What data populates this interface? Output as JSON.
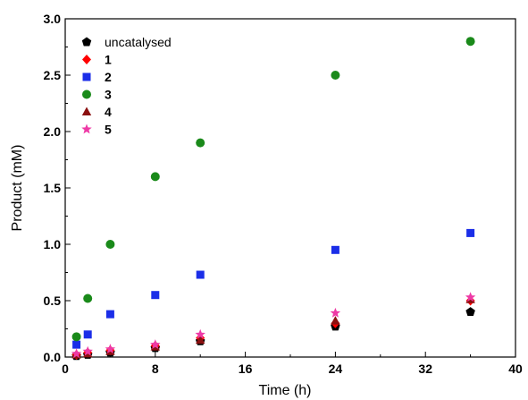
{
  "chart_data": {
    "type": "scatter",
    "xlabel": "Time (h)",
    "ylabel": "Product (mM)",
    "xlim": [
      0,
      40
    ],
    "ylim": [
      0,
      3.0
    ],
    "xticks": [
      "0",
      "8",
      "16",
      "24",
      "32",
      "40"
    ],
    "yticks": [
      "0.0",
      "0.5",
      "1.0",
      "1.5",
      "2.0",
      "2.5",
      "3.0"
    ],
    "grid": false,
    "legend_position": "top-left",
    "series": [
      {
        "name": "uncatalysed",
        "marker": "pentagon",
        "color": "#000000",
        "points": [
          [
            1,
            0.01
          ],
          [
            2,
            0.02
          ],
          [
            4,
            0.04
          ],
          [
            8,
            0.08
          ],
          [
            12,
            0.14
          ],
          [
            24,
            0.27
          ],
          [
            36,
            0.4
          ]
        ]
      },
      {
        "name": "1",
        "marker": "diamond",
        "color": "#ff0000",
        "points": [
          [
            1,
            0.02
          ],
          [
            2,
            0.04
          ],
          [
            4,
            0.06
          ],
          [
            8,
            0.1
          ],
          [
            12,
            0.17
          ],
          [
            24,
            0.3
          ],
          [
            36,
            0.5
          ]
        ]
      },
      {
        "name": "2",
        "marker": "square",
        "color": "#1b2ee8",
        "points": [
          [
            1,
            0.11
          ],
          [
            2,
            0.2
          ],
          [
            4,
            0.38
          ],
          [
            8,
            0.55
          ],
          [
            12,
            0.73
          ],
          [
            24,
            0.95
          ],
          [
            36,
            1.1
          ]
        ]
      },
      {
        "name": "3",
        "marker": "circle",
        "color": "#1a8a1a",
        "points": [
          [
            1,
            0.18
          ],
          [
            2,
            0.52
          ],
          [
            4,
            1.0
          ],
          [
            8,
            1.6
          ],
          [
            12,
            1.9
          ],
          [
            24,
            2.5
          ],
          [
            36,
            2.8
          ]
        ]
      },
      {
        "name": "4",
        "marker": "triangle",
        "color": "#8b1010",
        "points": [
          [
            1,
            0.02
          ],
          [
            2,
            0.03
          ],
          [
            4,
            0.05
          ],
          [
            8,
            0.09
          ],
          [
            12,
            0.15
          ],
          [
            24,
            0.32
          ],
          [
            36,
            0.51
          ]
        ]
      },
      {
        "name": "5",
        "marker": "star",
        "color": "#ee3aa6",
        "points": [
          [
            1,
            0.03
          ],
          [
            2,
            0.05
          ],
          [
            4,
            0.07
          ],
          [
            8,
            0.11
          ],
          [
            12,
            0.2
          ],
          [
            24,
            0.39
          ],
          [
            36,
            0.53
          ]
        ]
      }
    ]
  }
}
